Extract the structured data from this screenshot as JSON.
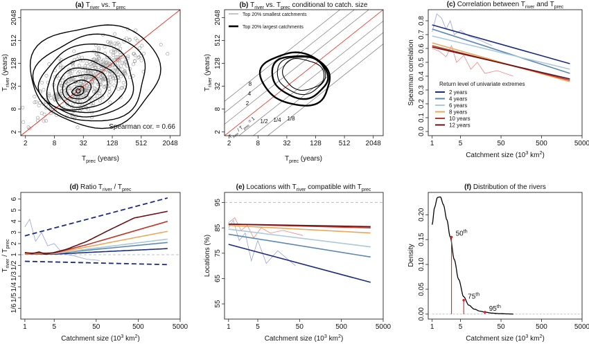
{
  "chart_data": [
    {
      "type": "scatter",
      "panel_label": "(a)",
      "title_parts": [
        "T",
        "river",
        " vs. T",
        "prec"
      ],
      "xlabel_parts": [
        "T",
        "prec",
        " (years)"
      ],
      "ylabel_parts": [
        "T",
        "river",
        " (years)"
      ],
      "axis_scale": "log2",
      "xlim": [
        1.6,
        3300
      ],
      "ylim": [
        1.6,
        3300
      ],
      "x_ticks": [
        "2",
        "8",
        "32",
        "128",
        "512",
        "2048"
      ],
      "y_ticks": [
        "2",
        "8",
        "32",
        "128",
        "512",
        "2048"
      ],
      "x_tick_values": [
        2,
        8,
        32,
        128,
        512,
        2048
      ],
      "y_tick_values": [
        2,
        8,
        32,
        128,
        512,
        2048
      ],
      "annotation": "Spearman cor. = 0.66",
      "density_center": {
        "x": 25,
        "y": 24
      },
      "contours": [
        {
          "cx": 25,
          "cy": 24,
          "rx_log2": 0.45,
          "ry_log2": 0.35
        },
        {
          "cx": 26,
          "cy": 26,
          "rx_log2": 0.9,
          "ry_log2": 0.75
        },
        {
          "cx": 28,
          "cy": 28,
          "rx_log2": 1.35,
          "ry_log2": 1.15
        },
        {
          "cx": 30,
          "cy": 31,
          "rx_log2": 1.8,
          "ry_log2": 1.6
        },
        {
          "cx": 33,
          "cy": 34,
          "rx_log2": 2.3,
          "ry_log2": 2.05
        },
        {
          "cx": 36,
          "cy": 38,
          "rx_log2": 2.8,
          "ry_log2": 2.55
        },
        {
          "cx": 40,
          "cy": 44,
          "rx_log2": 3.3,
          "ry_log2": 3.1
        },
        {
          "cx": 48,
          "cy": 52,
          "rx_log2": 3.9,
          "ry_log2": 3.7
        },
        {
          "cx": 56,
          "cy": 64,
          "rx_log2": 4.5,
          "ry_log2": 4.4
        }
      ],
      "reference_line": "1:1",
      "colors": {
        "points": "#999999",
        "contours": "#000000",
        "reference": "#e3291c"
      }
    },
    {
      "type": "line",
      "panel_label": "(b)",
      "title_parts": [
        "T",
        "river",
        " vs. T",
        "prec",
        " conditional to catch. size"
      ],
      "xlabel_parts": [
        "T",
        "prec",
        " (years)"
      ],
      "ylabel_parts": [
        "T",
        "river",
        " (years)"
      ],
      "axis_scale": "log2",
      "xlim": [
        1.6,
        3300
      ],
      "ylim": [
        1.6,
        3300
      ],
      "x_ticks": [
        "2",
        "8",
        "32",
        "128",
        "512",
        "2048"
      ],
      "y_ticks": [
        "2",
        "8",
        "32",
        "128",
        "512",
        "2048"
      ],
      "x_tick_values": [
        2,
        8,
        32,
        128,
        512,
        2048
      ],
      "y_tick_values": [
        2,
        8,
        32,
        128,
        512,
        2048
      ],
      "legend": [
        {
          "label": "Top 20% smallest catchments",
          "style": "thin"
        },
        {
          "label": "Top 20% largest catchments",
          "style": "thick"
        }
      ],
      "ratio_lines": [
        8,
        4,
        2,
        1,
        0.5,
        0.25,
        0.125
      ],
      "ratio_labels": [
        "8",
        "4",
        "2",
        "1/2",
        "1/4",
        "1/8"
      ],
      "ratio_label_one_parts": [
        "T",
        "river",
        " / T",
        "prec",
        " = 1"
      ],
      "thin_contours": [
        {
          "cx": 64,
          "cy": 64,
          "rx_log2": 1.6,
          "ry_log2": 1.7
        },
        {
          "cx": 70,
          "cy": 66,
          "rx_log2": 1.3,
          "ry_log2": 1.5
        }
      ],
      "thick_contours": [
        {
          "cx": 50,
          "cy": 50,
          "rx_log2": 2.2,
          "ry_log2": 2.5
        },
        {
          "cx": 60,
          "cy": 58,
          "rx_log2": 1.8,
          "ry_log2": 2.0
        }
      ]
    },
    {
      "type": "line",
      "panel_label": "(c)",
      "title_parts": [
        "Correlation between T",
        "river",
        " and T",
        "prec"
      ],
      "xlabel_parts": [
        "Catchment size (10",
        "3",
        " km",
        "2",
        ")"
      ],
      "ylabel": "Spearman correlation",
      "x_scale": "log10",
      "xlim": [
        0.8,
        5000
      ],
      "ylim": [
        -0.03,
        0.88
      ],
      "x_ticks": [
        "1",
        "5",
        "50",
        "500",
        "5000"
      ],
      "x_tick_values": [
        1,
        5,
        50,
        500,
        5000
      ],
      "y_ticks": [
        "0.0",
        "0.1",
        "0.2",
        "0.3",
        "0.4",
        "0.5",
        "0.6",
        "0.7",
        "0.8"
      ],
      "y_tick_values": [
        0,
        0.1,
        0.2,
        0.3,
        0.4,
        0.5,
        0.6,
        0.7,
        0.8
      ],
      "legend_title": "Return level of univariate extremes",
      "series": [
        {
          "name": "2 years",
          "color": "#1a2a7a",
          "x": [
            1,
            2500
          ],
          "y": [
            0.77,
            0.49
          ]
        },
        {
          "name": "4 years",
          "color": "#5a88b0",
          "x": [
            1,
            2500
          ],
          "y": [
            0.74,
            0.42
          ]
        },
        {
          "name": "6 years",
          "color": "#a9c8d8",
          "x": [
            1,
            2500
          ],
          "y": [
            0.69,
            0.45
          ]
        },
        {
          "name": "8 years",
          "color": "#e8a958",
          "x": [
            1,
            2500
          ],
          "y": [
            0.64,
            0.36
          ]
        },
        {
          "name": "10 years",
          "color": "#b93a2a",
          "x": [
            1,
            2500
          ],
          "y": [
            0.62,
            0.37
          ]
        },
        {
          "name": "12 years",
          "color": "#6b0f14",
          "x": [
            1,
            2500
          ],
          "y": [
            0.61,
            0.38
          ]
        }
      ],
      "noisy_series": [
        {
          "color": "#9aa0d8",
          "x": [
            1,
            1.3,
            1.7,
            2.2,
            2.8,
            3.5,
            5,
            8,
            15,
            30
          ],
          "y": [
            0.72,
            0.85,
            0.82,
            0.74,
            0.8,
            0.7,
            0.73,
            0.69,
            0.66,
            0.62
          ]
        },
        {
          "color": "#e08a88",
          "x": [
            1,
            1.5,
            2.2,
            3,
            4,
            6,
            9,
            13,
            20,
            40,
            100
          ],
          "y": [
            0.6,
            0.58,
            0.54,
            0.62,
            0.5,
            0.55,
            0.45,
            0.5,
            0.42,
            0.44,
            0.4
          ]
        }
      ]
    },
    {
      "type": "line",
      "panel_label": "(d)",
      "title_parts": [
        "Ratio T",
        "river",
        " / T",
        "prec"
      ],
      "xlabel_parts": [
        "Catchment size (10",
        "3",
        " km",
        "2",
        ")"
      ],
      "ylabel_parts": [
        "T",
        "river",
        " / T",
        "prec"
      ],
      "x_scale": "log10",
      "xlim": [
        0.8,
        5000
      ],
      "ylim": [
        0.14,
        6.6
      ],
      "x_ticks": [
        "1",
        "5",
        "50",
        "500",
        "5000"
      ],
      "x_tick_values": [
        1,
        5,
        50,
        500,
        5000
      ],
      "y_ticks": [
        "6",
        "5",
        "4",
        "3",
        "2",
        "1",
        "1/2",
        "1/3",
        "1/4",
        "1/5",
        "1/6"
      ],
      "y_tick_values": [
        6,
        5,
        4,
        3,
        2,
        1,
        0.5,
        0.333,
        0.25,
        0.2,
        0.1667
      ],
      "reference_value": 1,
      "dashed_bounds": [
        {
          "color": "#1a2a7a",
          "x": [
            1,
            2500
          ],
          "y": [
            2.7,
            6.1
          ]
        },
        {
          "color": "#1a2a7a",
          "x": [
            1,
            2500
          ],
          "y": [
            0.62,
            0.52
          ]
        }
      ],
      "series": [
        {
          "color": "#1a2a7a",
          "x": [
            1,
            5,
            30,
            2500
          ],
          "y": [
            1.05,
            1.05,
            1.2,
            1.55
          ]
        },
        {
          "color": "#5a88b0",
          "x": [
            1,
            5,
            30,
            2500
          ],
          "y": [
            1.05,
            1.1,
            1.4,
            2.1
          ]
        },
        {
          "color": "#a9c8d8",
          "x": [
            1,
            5,
            30,
            2500
          ],
          "y": [
            1.1,
            1.1,
            1.5,
            2.4
          ]
        },
        {
          "color": "#e8a958",
          "x": [
            1,
            5,
            30,
            2500
          ],
          "y": [
            1.1,
            1.15,
            1.7,
            3.1
          ]
        },
        {
          "color": "#b93a2a",
          "x": [
            1,
            5,
            30,
            2500
          ],
          "y": [
            1.15,
            1.15,
            1.9,
            4.0
          ]
        },
        {
          "color": "#6b0f14",
          "x": [
            1,
            1.5,
            2.2,
            3,
            5,
            10,
            30,
            100,
            400,
            2500
          ],
          "y": [
            1.2,
            1.1,
            1.25,
            1.05,
            1.2,
            1.5,
            2.2,
            3.2,
            4.3,
            4.9
          ]
        }
      ],
      "noisy_series": [
        {
          "color": "#9aa0d8",
          "x": [
            1,
            1.3,
            1.8,
            2.5,
            3.5,
            5,
            8,
            15,
            30,
            60
          ],
          "y": [
            3.5,
            4.2,
            2.2,
            3.0,
            1.8,
            2.0,
            1.1,
            0.9,
            0.7,
            0.65
          ]
        }
      ]
    },
    {
      "type": "line",
      "panel_label": "(e)",
      "title_parts": [
        "Locations with T",
        "river",
        " compatible with T",
        "prec"
      ],
      "xlabel_parts": [
        "Catchment size (10",
        "3",
        " km",
        "2",
        ")"
      ],
      "ylabel": "Locations (%)",
      "x_scale": "log10",
      "xlim": [
        0.8,
        5000
      ],
      "ylim": [
        49,
        99
      ],
      "x_ticks": [
        "1",
        "5",
        "50",
        "500",
        "5000"
      ],
      "x_tick_values": [
        1,
        5,
        50,
        500,
        5000
      ],
      "y_ticks": [
        "55",
        "65",
        "75",
        "85",
        "95"
      ],
      "y_tick_values": [
        55,
        65,
        75,
        85,
        95
      ],
      "reference_value": 95,
      "series": [
        {
          "color": "#1a2a7a",
          "x": [
            1,
            2500
          ],
          "y": [
            78.5,
            63.5
          ]
        },
        {
          "color": "#5a88b0",
          "x": [
            1,
            2500
          ],
          "y": [
            82.5,
            73.5
          ]
        },
        {
          "color": "#a9c8d8",
          "x": [
            1,
            2500
          ],
          "y": [
            84.5,
            77.5
          ]
        },
        {
          "color": "#e8a958",
          "x": [
            1,
            2500
          ],
          "y": [
            86,
            83
          ]
        },
        {
          "color": "#b93a2a",
          "x": [
            1,
            2500
          ],
          "y": [
            86.5,
            85
          ]
        },
        {
          "color": "#6b0f14",
          "x": [
            1,
            2500
          ],
          "y": [
            86.5,
            85.5
          ]
        }
      ],
      "noisy_series": [
        {
          "color": "#9aa0d8",
          "x": [
            1,
            1.3,
            1.8,
            2.5,
            3.5,
            5,
            8,
            15,
            40
          ],
          "y": [
            85,
            88,
            80,
            83,
            72,
            80,
            71,
            76,
            70
          ]
        },
        {
          "color": "#e08a88",
          "x": [
            1,
            1.4,
            2,
            2.8,
            4,
            6,
            10,
            20,
            60
          ],
          "y": [
            87,
            89,
            84,
            86,
            81,
            85,
            83,
            84,
            82
          ]
        }
      ]
    },
    {
      "type": "line",
      "panel_label": "(f)",
      "title": "Distribution of the rivers",
      "xlabel_parts": [
        "Catchment size (10",
        "3",
        " km",
        "2",
        ")"
      ],
      "ylabel": "Density",
      "x_scale": "log10",
      "xlim": [
        0.8,
        5000
      ],
      "ylim": [
        -0.01,
        0.245
      ],
      "x_ticks": [
        "1",
        "5",
        "50",
        "500",
        "5000"
      ],
      "x_tick_values": [
        1,
        5,
        50,
        500,
        5000
      ],
      "y_ticks": [
        "0.00",
        "0.05",
        "0.10",
        "0.15",
        "0.20"
      ],
      "y_tick_values": [
        0,
        0.05,
        0.1,
        0.15,
        0.2
      ],
      "curve": {
        "x": [
          1,
          1.15,
          1.35,
          1.6,
          1.9,
          2.3,
          2.8,
          3.5,
          4.5,
          6,
          8,
          11,
          15,
          20,
          30,
          45,
          70,
          100
        ],
        "y": [
          0.18,
          0.215,
          0.235,
          0.236,
          0.22,
          0.19,
          0.155,
          0.11,
          0.07,
          0.035,
          0.018,
          0.01,
          0.006,
          0.004,
          0.002,
          0.001,
          0.0005,
          0.0002
        ]
      },
      "percentiles": [
        {
          "label": "50",
          "suffix": "th",
          "x": 3,
          "y": 0.155
        },
        {
          "label": "75",
          "suffix": "th",
          "x": 6,
          "y": 0.028
        },
        {
          "label": "95",
          "suffix": "th",
          "x": 20,
          "y": 0.004
        }
      ],
      "colors": {
        "curve": "#000000",
        "percentiles": "#d4252b",
        "baseline": "#bbbbbb"
      }
    }
  ]
}
